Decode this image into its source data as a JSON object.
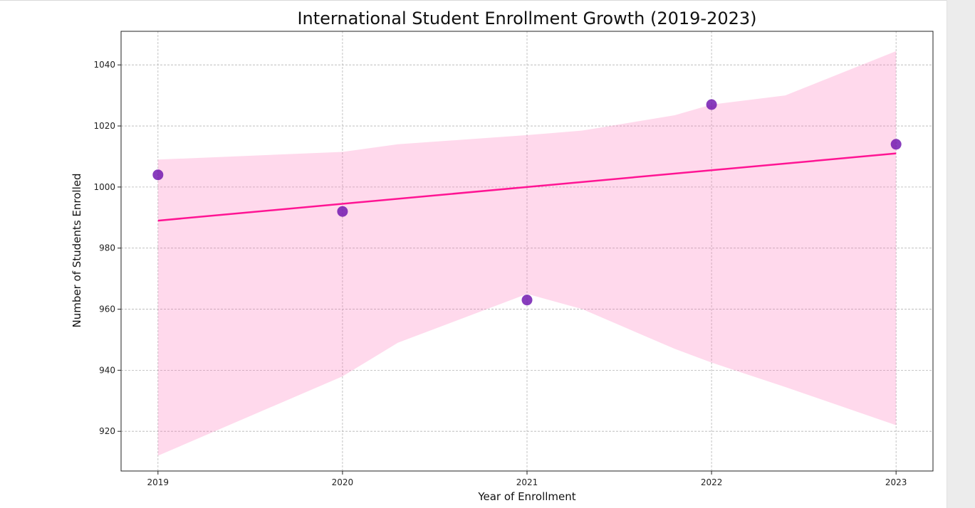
{
  "chart_data": {
    "type": "scatter",
    "title": "International Student Enrollment Growth (2019-2023)",
    "xlabel": "Year of Enrollment",
    "ylabel": "Number of Students Enrolled",
    "x_ticks": [
      "2019",
      "2020",
      "2021",
      "2022",
      "2023"
    ],
    "y_ticks": [
      920,
      940,
      960,
      980,
      1000,
      1020,
      1040
    ],
    "xlim": [
      2018.8,
      2023.2
    ],
    "ylim": [
      907,
      1051
    ],
    "grid": true,
    "series": [
      {
        "kind": "points",
        "x": [
          2019,
          2020,
          2021,
          2022,
          2023
        ],
        "y": [
          1004,
          992,
          963,
          1027,
          1014
        ],
        "color": "#6a0dad"
      },
      {
        "kind": "regression",
        "x": [
          2019,
          2023
        ],
        "y": [
          989,
          1011
        ],
        "color": "#ff1493"
      }
    ],
    "confidence_band": {
      "x": [
        2019,
        2020,
        2020.3,
        2021,
        2021.3,
        2021.8,
        2022,
        2022.4,
        2023
      ],
      "upper": [
        1009,
        1011.5,
        1014,
        1017,
        1018.5,
        1023.5,
        1027,
        1030,
        1044.5
      ],
      "lower": [
        912,
        938,
        949,
        965,
        960,
        947,
        942.5,
        934.5,
        922
      ],
      "color": "#ff69b4"
    }
  }
}
